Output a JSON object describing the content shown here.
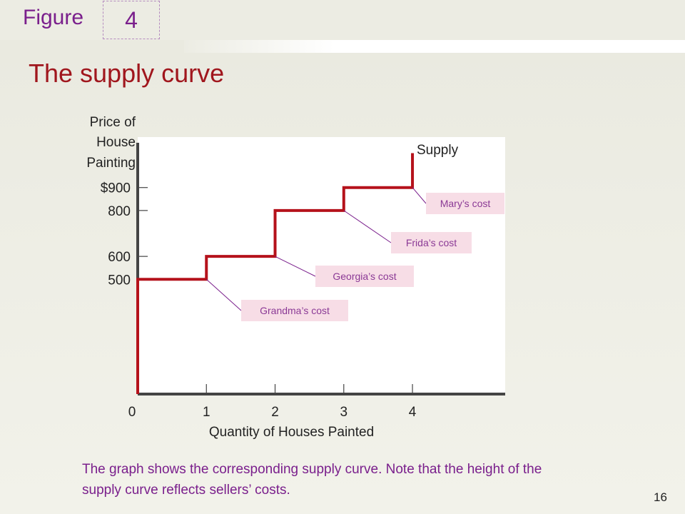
{
  "slide": {
    "figure_label": "Figure",
    "figure_number": "4",
    "title": "The supply curve",
    "caption": "The graph shows the corresponding supply curve. Note that the height of the supply curve reflects sellers’ costs.",
    "page_number": "16"
  },
  "colors": {
    "curve": "#b5121b",
    "title": "#a0161d",
    "purple": "#7a1f8c",
    "callout_text": "#8b3a96",
    "callout_fill": "#f7dde6",
    "axis": "#444444"
  },
  "chart_data": {
    "type": "line",
    "step": true,
    "title": "",
    "xlabel": "Quantity of Houses Painted",
    "ylabel": [
      "Price of",
      "House",
      "Painting"
    ],
    "x_ticks": [
      {
        "value": 0,
        "label": "0"
      },
      {
        "value": 1,
        "label": "1"
      },
      {
        "value": 2,
        "label": "2"
      },
      {
        "value": 3,
        "label": "3"
      },
      {
        "value": 4,
        "label": "4"
      }
    ],
    "y_ticks": [
      {
        "value": 500,
        "label": "500"
      },
      {
        "value": 600,
        "label": "600"
      },
      {
        "value": 800,
        "label": "800"
      },
      {
        "value": 900,
        "label": "$900"
      }
    ],
    "xlim": [
      0,
      5.35
    ],
    "ylim": [
      0,
      1120
    ],
    "series": [
      {
        "name": "Supply",
        "steps": [
          {
            "price_from": 0,
            "price_to": 500,
            "quantity": 0
          },
          {
            "price_from": 500,
            "price_to": 600,
            "quantity": 1
          },
          {
            "price_from": 600,
            "price_to": 800,
            "quantity": 2
          },
          {
            "price_from": 800,
            "price_to": 900,
            "quantity": 3
          },
          {
            "price_from": 900,
            "price_to": 1050,
            "quantity": 4
          }
        ]
      }
    ],
    "annotations": [
      {
        "text": "Grandma’s cost",
        "x": 1,
        "y": 500
      },
      {
        "text": "Georgia’s cost",
        "x": 2,
        "y": 600
      },
      {
        "text": "Frida’s cost",
        "x": 3,
        "y": 800
      },
      {
        "text": "Mary’s cost",
        "x": 4,
        "y": 900
      }
    ]
  }
}
